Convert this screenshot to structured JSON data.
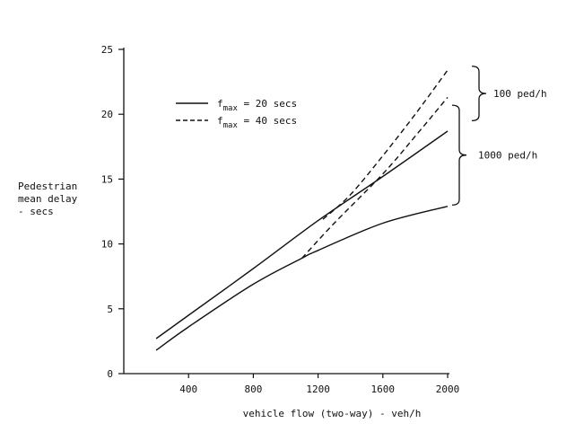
{
  "chart_data": {
    "type": "line",
    "xlabel": "vehicle flow (two-way) - veh/h",
    "ylabel_lines": [
      "Pedestrian",
      "mean delay",
      "- secs"
    ],
    "xlim": [
      0,
      2000
    ],
    "ylim": [
      0,
      25
    ],
    "x_ticks": [
      400,
      800,
      1200,
      1600,
      2000
    ],
    "y_ticks": [
      0,
      5,
      10,
      15,
      20,
      25
    ],
    "grid": false,
    "legend": {
      "placement": "top-left",
      "entries": [
        {
          "prefix": "f",
          "sub": "max",
          "rest": " = 20 secs",
          "dash": "solid"
        },
        {
          "prefix": "f",
          "sub": "max",
          "rest": " = 40 secs",
          "dash": "dashed"
        }
      ]
    },
    "series": [
      {
        "flow": "100 ped/h",
        "fmax": "20 secs",
        "dash": "solid",
        "x": [
          200,
          400,
          800,
          1200,
          1600,
          2000
        ],
        "y": [
          2.7,
          4.5,
          8.1,
          11.8,
          15.2,
          18.7
        ]
      },
      {
        "flow": "1000 ped/h",
        "fmax": "20 secs",
        "dash": "solid",
        "x": [
          200,
          400,
          800,
          1100,
          1200,
          1600,
          2000
        ],
        "y": [
          1.8,
          3.6,
          6.9,
          8.9,
          9.5,
          11.6,
          12.9
        ]
      },
      {
        "flow": "100 ped/h",
        "fmax": "40 secs",
        "dash": "dashed",
        "x": [
          1230,
          1400,
          1600,
          1800,
          2000
        ],
        "y": [
          11.9,
          13.8,
          16.8,
          20.0,
          23.4
        ]
      },
      {
        "flow": "1000 ped/h",
        "fmax": "40 secs",
        "dash": "dashed",
        "x": [
          1100,
          1300,
          1600,
          1800,
          2000
        ],
        "y": [
          8.9,
          11.6,
          15.4,
          18.3,
          21.3
        ]
      }
    ],
    "annotations": [
      {
        "text": "100 ped/h",
        "y_range": [
          19.5,
          23.7
        ]
      },
      {
        "text": "1000 ped/h",
        "y_range": [
          13.0,
          20.7
        ]
      }
    ]
  }
}
